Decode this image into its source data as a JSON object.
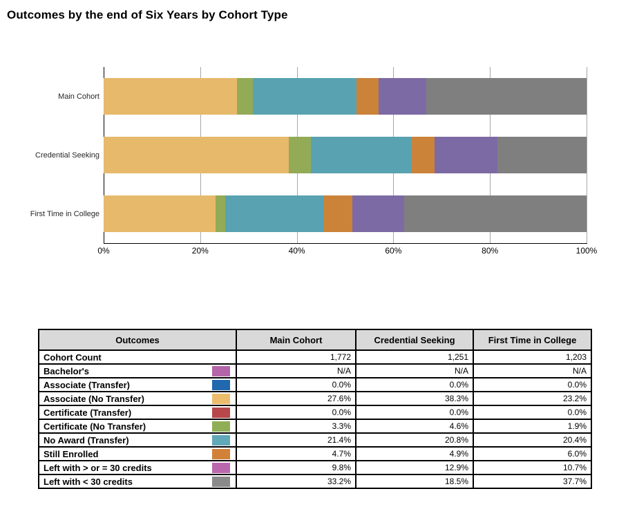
{
  "title": "Outcomes by the end of Six Years by Cohort Type",
  "chart_data": {
    "type": "bar",
    "stacked": true,
    "orientation": "horizontal",
    "title": "Outcomes by the end of Six Years by Cohort Type",
    "categories": [
      "Main Cohort",
      "Credential Seeking",
      "First Time in College"
    ],
    "series": [
      {
        "name": "Associate (No Transfer)",
        "color": "#e7b96b",
        "values": [
          27.6,
          38.3,
          23.2
        ]
      },
      {
        "name": "Certificate (No Transfer)",
        "color": "#93ab56",
        "values": [
          3.3,
          4.6,
          1.9
        ]
      },
      {
        "name": "No Award (Transfer)",
        "color": "#58a2b2",
        "values": [
          21.4,
          20.8,
          20.4
        ]
      },
      {
        "name": "Still Enrolled",
        "color": "#cb8239",
        "values": [
          4.7,
          4.9,
          6.0
        ]
      },
      {
        "name": "Left with > or = 30 credits",
        "color": "#7c6aa4",
        "values": [
          9.8,
          12.9,
          10.7
        ]
      },
      {
        "name": "Left with < 30 credits",
        "color": "#7f7f7f",
        "values": [
          33.2,
          18.5,
          37.7
        ]
      }
    ],
    "x_ticks": [
      "0%",
      "20%",
      "40%",
      "60%",
      "80%",
      "100%"
    ],
    "xlim": [
      0,
      100
    ],
    "grid": true,
    "legend_position": "none",
    "gridline_color": "#a6a6a6"
  },
  "table": {
    "headers": [
      "Outcomes",
      "Main Cohort",
      "Credential Seeking",
      "First Time in College"
    ],
    "header_bg": "#d9d9d9",
    "rows": [
      {
        "label": "Cohort Count",
        "swatch": null,
        "values": [
          "1,772",
          "1,251",
          "1,203"
        ]
      },
      {
        "label": "Bachelor's",
        "swatch": "#b465a9",
        "values": [
          "N/A",
          "N/A",
          "N/A"
        ]
      },
      {
        "label": "Associate (Transfer)",
        "swatch": "#2169ae",
        "values": [
          "0.0%",
          "0.0%",
          "0.0%"
        ]
      },
      {
        "label": "Associate (No Transfer)",
        "swatch": "#ecbc6d",
        "values": [
          "27.6%",
          "38.3%",
          "23.2%"
        ]
      },
      {
        "label": "Certificate (Transfer)",
        "swatch": "#b8474b",
        "values": [
          "0.0%",
          "0.0%",
          "0.0%"
        ]
      },
      {
        "label": "Certificate (No Transfer)",
        "swatch": "#8fae55",
        "values": [
          "3.3%",
          "4.6%",
          "1.9%"
        ]
      },
      {
        "label": "No Award (Transfer)",
        "swatch": "#61a8b8",
        "values": [
          "21.4%",
          "20.8%",
          "20.4%"
        ]
      },
      {
        "label": "Still Enrolled",
        "swatch": "#d28138",
        "values": [
          "4.7%",
          "4.9%",
          "6.0%"
        ]
      },
      {
        "label": "Left with > or = 30 credits",
        "swatch": "#ba67ad",
        "values": [
          "9.8%",
          "12.9%",
          "10.7%"
        ]
      },
      {
        "label": "Left with < 30 credits",
        "swatch": "#8a8a8a",
        "values": [
          "33.2%",
          "18.5%",
          "37.7%"
        ]
      }
    ]
  }
}
